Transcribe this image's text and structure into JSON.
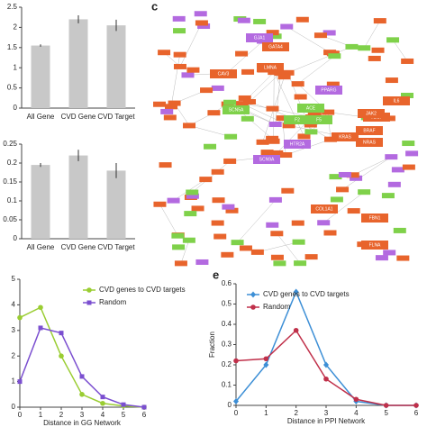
{
  "panel_labels": {
    "c": "c",
    "e": "e"
  },
  "chart_data": [
    {
      "type": "bar",
      "categories": [
        "All Gene",
        "CVD Gene",
        "CVD Target"
      ],
      "values": [
        1.55,
        2.2,
        2.05
      ],
      "errors": [
        0.03,
        0.1,
        0.14
      ],
      "color": "#c8c8c8",
      "ylim": [
        0,
        2.5
      ],
      "yticks": [
        0,
        0.5,
        1,
        1.5,
        2,
        2.5
      ]
    },
    {
      "type": "bar",
      "categories": [
        "All Gene",
        "CVD Gene",
        "CVD Target"
      ],
      "values": [
        0.195,
        0.22,
        0.18
      ],
      "errors": [
        0.005,
        0.015,
        0.02
      ],
      "color": "#c8c8c8",
      "ylim": [
        0,
        0.25
      ],
      "yticks": [
        0,
        0.05,
        0.1,
        0.15,
        0.2,
        0.25
      ]
    },
    {
      "type": "line",
      "xlabel": "Distance in GG Network",
      "x": [
        0,
        1,
        2,
        3,
        4,
        5,
        6
      ],
      "xlim": [
        0,
        6
      ],
      "xticks": [
        0,
        1,
        2,
        3,
        4,
        5,
        6
      ],
      "ylim": [
        0,
        5
      ],
      "yticks": [
        0,
        1,
        2,
        3,
        4,
        5
      ],
      "legend": "upper right",
      "series": [
        {
          "name": "CVD genes to CVD targets",
          "color": "#9acd32",
          "marker": "circle",
          "values": [
            3.5,
            3.9,
            2.0,
            0.5,
            0.15,
            0.05,
            0
          ]
        },
        {
          "name": "Random",
          "color": "#7b4fd0",
          "marker": "square",
          "values": [
            1.0,
            3.1,
            2.9,
            1.2,
            0.4,
            0.1,
            0
          ]
        }
      ]
    },
    {
      "type": "line",
      "xlabel": "Distance in PPI Network",
      "ylabel": "Fraction",
      "x": [
        0,
        1,
        2,
        3,
        4,
        5,
        6
      ],
      "xlim": [
        0,
        6
      ],
      "xticks": [
        0,
        1,
        2,
        3,
        4,
        5,
        6
      ],
      "ylim": [
        0,
        0.6
      ],
      "yticks": [
        0,
        0.1,
        0.2,
        0.3,
        0.4,
        0.5,
        0.6
      ],
      "legend": "upper left",
      "series": [
        {
          "name": "CVD genes to CVD targets",
          "color": "#3d8fd6",
          "marker": "diamond",
          "values": [
            0.02,
            0.2,
            0.56,
            0.2,
            0.02,
            0,
            0
          ]
        },
        {
          "name": "Random",
          "color": "#c0304a",
          "marker": "circle",
          "values": [
            0.22,
            0.23,
            0.37,
            0.13,
            0.03,
            0,
            0
          ]
        }
      ]
    }
  ],
  "network": {
    "nodes": [
      {
        "label": "LMNA",
        "kind": "target"
      },
      {
        "label": "ACE",
        "kind": "gene"
      },
      {
        "label": "SCN5A",
        "kind": "gene"
      },
      {
        "label": "KRAS",
        "kind": "target"
      },
      {
        "label": "BRAF",
        "kind": "target"
      },
      {
        "label": "PPARG",
        "kind": "drug"
      },
      {
        "label": "HTR2A",
        "kind": "drug"
      },
      {
        "label": "IL6",
        "kind": "target"
      },
      {
        "label": "VEGF",
        "kind": "target"
      },
      {
        "label": "FLNA",
        "kind": "target"
      },
      {
        "label": "GJA1",
        "kind": "drug"
      },
      {
        "label": "CAV3",
        "kind": "target"
      },
      {
        "label": "GATA4",
        "kind": "target"
      },
      {
        "label": "F2",
        "kind": "gene"
      },
      {
        "label": "F5",
        "kind": "gene"
      },
      {
        "label": "NRAS",
        "kind": "target"
      },
      {
        "label": "COL1A1",
        "kind": "target"
      },
      {
        "label": "FBN1",
        "kind": "target"
      },
      {
        "label": "JAK2",
        "kind": "target"
      },
      {
        "label": "SCN9A",
        "kind": "drug"
      }
    ]
  }
}
